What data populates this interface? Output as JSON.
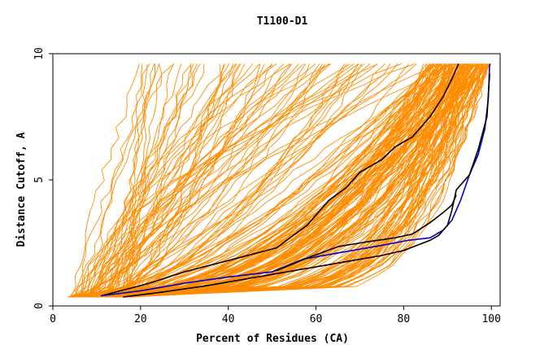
{
  "chart_data": {
    "type": "line",
    "title": "T1100-D1",
    "xlabel": "Percent of Residues (CA)",
    "ylabel": "Distance Cutoff, A",
    "xlim": [
      0,
      102
    ],
    "ylim": [
      0,
      10
    ],
    "xticks": [
      0,
      20,
      40,
      60,
      80,
      100
    ],
    "xtick_labels": [
      "0",
      "20",
      "40",
      "60",
      "80",
      "100"
    ],
    "yticks": [
      0,
      5,
      10
    ],
    "ytick_labels": [
      "0",
      "5",
      "10"
    ],
    "grid": false,
    "background_models": {
      "color": "#ff8c00",
      "count": 220,
      "description_of_spread": "orange GDT curves of predicted models fanning from ~5% to 100% residues"
    },
    "series": [
      {
        "name": "black-upper",
        "color": "#000000",
        "points": [
          [
            11,
            0.4
          ],
          [
            22,
            0.9
          ],
          [
            30,
            1.35
          ],
          [
            40,
            1.8
          ],
          [
            51,
            2.3
          ],
          [
            58,
            3.2
          ],
          [
            63,
            4.2
          ],
          [
            67,
            4.7
          ],
          [
            70,
            5.3
          ],
          [
            75,
            5.8
          ],
          [
            78,
            6.3
          ],
          [
            82,
            6.7
          ],
          [
            86,
            7.5
          ],
          [
            89,
            8.3
          ],
          [
            91,
            9.0
          ],
          [
            92.5,
            9.6
          ]
        ]
      },
      {
        "name": "blue",
        "color": "#0000cc",
        "points": [
          [
            11,
            0.4
          ],
          [
            20,
            0.6
          ],
          [
            30,
            0.9
          ],
          [
            40,
            1.15
          ],
          [
            50,
            1.35
          ],
          [
            57,
            1.85
          ],
          [
            65,
            2.1
          ],
          [
            75,
            2.4
          ],
          [
            81,
            2.6
          ],
          [
            86,
            2.7
          ],
          [
            89,
            3.0
          ],
          [
            91,
            3.4
          ],
          [
            93,
            4.2
          ],
          [
            95,
            5.2
          ],
          [
            97,
            6.0
          ],
          [
            98.5,
            7.0
          ],
          [
            99.3,
            8.2
          ],
          [
            99.6,
            9.6
          ]
        ]
      },
      {
        "name": "black-lower",
        "color": "#000000",
        "points": [
          [
            16,
            0.35
          ],
          [
            25,
            0.55
          ],
          [
            35,
            0.8
          ],
          [
            45,
            1.1
          ],
          [
            55,
            1.4
          ],
          [
            65,
            1.7
          ],
          [
            75,
            2.0
          ],
          [
            80,
            2.2
          ],
          [
            86,
            2.6
          ],
          [
            88,
            2.8
          ],
          [
            90,
            3.2
          ],
          [
            91,
            3.8
          ],
          [
            92,
            4.6
          ],
          [
            95,
            5.2
          ],
          [
            97,
            6.2
          ],
          [
            99,
            7.5
          ],
          [
            99.6,
            9.2
          ]
        ]
      },
      {
        "name": "black-mid",
        "color": "#000000",
        "points": [
          [
            51,
            1.4
          ],
          [
            58,
            1.9
          ],
          [
            65,
            2.35
          ],
          [
            72,
            2.55
          ],
          [
            78,
            2.7
          ],
          [
            82,
            2.85
          ],
          [
            86,
            3.3
          ],
          [
            89,
            3.7
          ],
          [
            91,
            4.0
          ],
          [
            92,
            4.4
          ]
        ]
      }
    ]
  }
}
